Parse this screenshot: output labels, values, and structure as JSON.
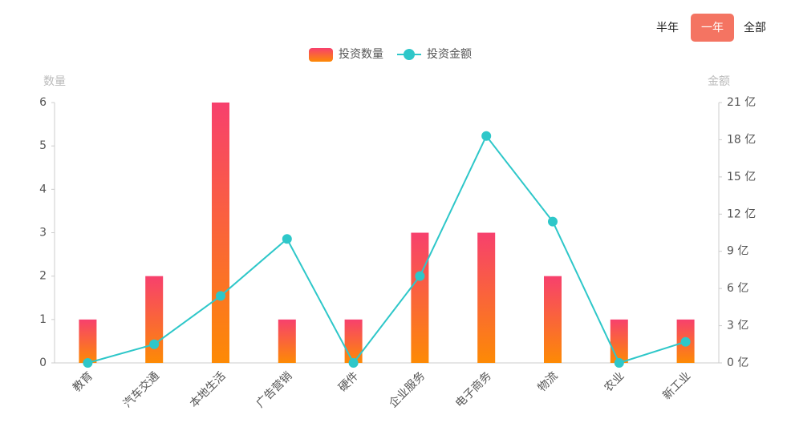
{
  "range_options": [
    {
      "label": "半年"
    },
    {
      "label": "一年",
      "selected": true
    },
    {
      "label": "全部"
    }
  ],
  "chart_data": {
    "type": "bar",
    "y_label": "数量",
    "y2_label": "金额",
    "categories": [
      "教育",
      "汽车交通",
      "本地生活",
      "广告营销",
      "硬件",
      "企业服务",
      "电子商务",
      "物流",
      "农业",
      "新工业"
    ],
    "series": [
      {
        "name": "投资数量",
        "type": "bar",
        "color": [
          "#f7406d",
          "#fd8a05"
        ],
        "values": [
          1,
          2,
          6,
          1,
          1,
          3,
          3,
          2,
          1,
          1
        ]
      },
      {
        "name": "投资金额",
        "type": "line",
        "axis": "y2",
        "color": "#2ec7c9",
        "values": [
          0,
          1.5,
          5.4,
          10,
          0,
          7,
          18.3,
          11.4,
          0,
          1.7
        ]
      }
    ],
    "ylim": [
      0,
      6
    ],
    "yticks": [
      0,
      1,
      2,
      3,
      4,
      5,
      6
    ],
    "y2lim": [
      0,
      21
    ],
    "y2ticks": [
      {
        "value": 0,
        "label": "0 亿"
      },
      {
        "value": 3,
        "label": "3 亿"
      },
      {
        "value": 6,
        "label": "6 亿"
      },
      {
        "value": 9,
        "label": "9 亿"
      },
      {
        "value": 12,
        "label": "12 亿"
      },
      {
        "value": 15,
        "label": "15 亿"
      },
      {
        "value": 18,
        "label": "18 亿"
      },
      {
        "value": 21,
        "label": "21 亿"
      }
    ],
    "grid": false
  }
}
